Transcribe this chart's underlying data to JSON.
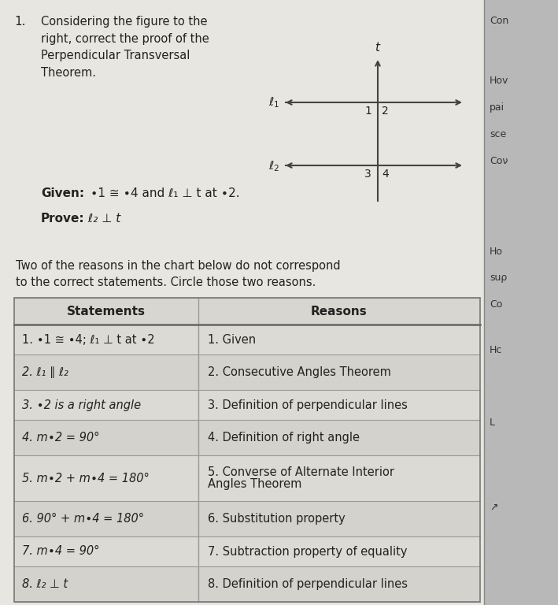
{
  "title_number": "1.",
  "title_text": "Considering the figure to the\nright, correct the proof of the\nPerpendicular Transversal\nTheorem.",
  "given_label": "Given:",
  "given_rest": " ∙1 ≅ ∙4 and ℓ₁ ⊥ t at ∙2.",
  "prove_label": "Prove:",
  "prove_rest": " ℓ₂ ⊥ t",
  "instruction_text": "Two of the reasons in the chart below do not correspond\nto the correct statements. Circle those two reasons.",
  "col1_header": "Statements",
  "col2_header": "Reasons",
  "rows": [
    [
      "1. ∙1 ≅ ∙4; ℓ₁ ⊥ t at ∙2",
      "1. Given"
    ],
    [
      "2. ℓ₁ ∥ ℓ₂",
      "2. Consecutive Angles Theorem"
    ],
    [
      "3. ∙2 is a right angle",
      "3. Definition of perpendicular lines"
    ],
    [
      "4. m∙2 = 90°",
      "4. Definition of right angle"
    ],
    [
      "5. m∙2 + m∙4 = 180°",
      "5. Converse of Alternate Interior\n    Angles Theorem"
    ],
    [
      "6. 90° + m∙4 = 180°",
      "6. Substitution property"
    ],
    [
      "7. m∙4 = 90°",
      "7. Subtraction property of equality"
    ],
    [
      "8. ℓ₂ ⊥ t",
      "8. Definition of perpendicular lines"
    ]
  ],
  "bg_color": "#c8c8c8",
  "paper_color": "#e8e6e0",
  "table_header_bg": "#c0c0c0",
  "row_odd_bg": "#dcdad4",
  "row_even_bg": "#d4d2cc",
  "text_color": "#222222",
  "line_color": "#444444",
  "right_panel_color": "#b8b8b8",
  "right_texts": [
    [
      0.955,
      "Con"
    ],
    [
      0.875,
      "Hov"
    ],
    [
      0.84,
      "pai"
    ],
    [
      0.805,
      "sce"
    ],
    [
      0.77,
      "Coν"
    ],
    [
      0.63,
      "Ho"
    ],
    [
      0.595,
      "suρ"
    ],
    [
      0.56,
      "Co"
    ],
    [
      0.49,
      "Hc"
    ],
    [
      0.39,
      "L"
    ],
    [
      0.28,
      "↗"
    ]
  ],
  "fig_width": 7.09,
  "fig_height": 7.68
}
